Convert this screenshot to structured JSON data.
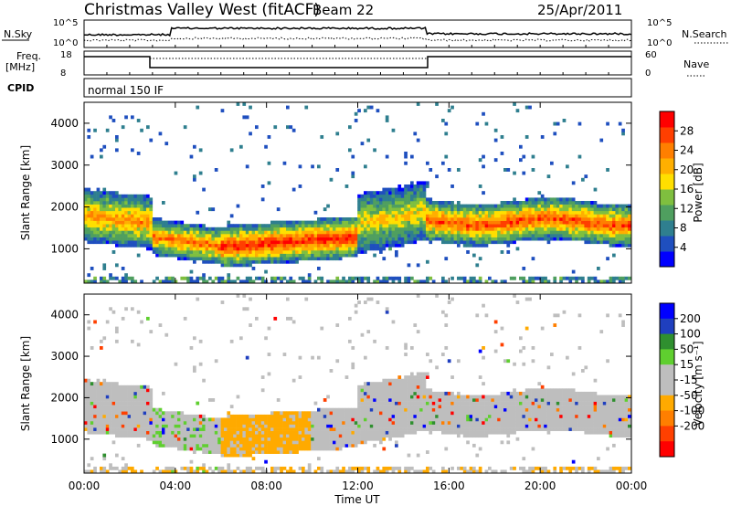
{
  "header": {
    "station": "Christmas Valley West (fitACF)",
    "beam": "Beam 22",
    "date": "25/Apr/2011"
  },
  "aux": {
    "nsky_label": "N.Sky",
    "nsearch_label": "N.Search",
    "noise_ticks": [
      "10^5",
      "10^0"
    ],
    "freq_label_1": "Freq.",
    "freq_label_2": "[MHz]",
    "freq_ticks": [
      "18",
      "8"
    ],
    "nave_label": "Nave",
    "nave_ticks": [
      "60",
      "0"
    ],
    "cpid_label": "CPID",
    "cpid_value": "normal 150 IF"
  },
  "colors": {
    "power_scale": [
      "#0000ff",
      "#1f4fbf",
      "#2f7f8f",
      "#4f9f5f",
      "#7fbf3f",
      "#ffdf00",
      "#ffaf00",
      "#ff7f00",
      "#ff3f00",
      "#ff0000"
    ],
    "velocity_scale": [
      "#0000ff",
      "#1f3fbf",
      "#2f8f2f",
      "#5fcf2f",
      "#bebebe",
      "#bebebe",
      "#ffaa00",
      "#ff7f00",
      "#ff4000",
      "#ff0000"
    ]
  },
  "chart_data": [
    {
      "type": "heatmap",
      "name": "power",
      "xlabel": "Time UT",
      "ylabel": "Slant Range [km]",
      "x_ticks": [
        "00:00",
        "04:00",
        "08:00",
        "12:00",
        "16:00",
        "20:00",
        "00:00"
      ],
      "y_ticks": [
        1000,
        2000,
        3000,
        4000
      ],
      "ylim": [
        180,
        4500
      ],
      "xlim_hours": [
        0,
        24
      ],
      "colorbar": {
        "label": "Power [dB]",
        "ticks": [
          "4",
          "8",
          "12",
          "16",
          "20",
          "24",
          "28"
        ],
        "range": [
          0,
          30
        ]
      },
      "bands": [
        {
          "hours": [
            0,
            3
          ],
          "range_km": [
            1250,
            2400
          ],
          "peak_db": 22
        },
        {
          "hours": [
            3,
            6
          ],
          "range_km": [
            900,
            1700
          ],
          "peak_db": 24
        },
        {
          "hours": [
            6,
            12
          ],
          "range_km": [
            600,
            1500
          ],
          "peak_db": 28
        },
        {
          "hours": [
            12,
            15
          ],
          "range_km": [
            1200,
            2500
          ],
          "peak_db": 18
        },
        {
          "hours": [
            15,
            24
          ],
          "range_km": [
            1300,
            2200
          ],
          "peak_db": 26
        }
      ]
    },
    {
      "type": "heatmap",
      "name": "velocity",
      "xlabel": "Time UT",
      "ylabel": "Slant Range [km]",
      "x_ticks": [
        "00:00",
        "04:00",
        "08:00",
        "12:00",
        "16:00",
        "20:00",
        "00:00"
      ],
      "y_ticks": [
        1000,
        2000,
        3000,
        4000
      ],
      "ylim": [
        180,
        4500
      ],
      "xlim_hours": [
        0,
        24
      ],
      "colorbar": {
        "label": "Velocity [m s⁻¹]",
        "ticks": [
          "200",
          "100",
          "50",
          "15",
          "-15",
          "-50",
          "-100",
          "-200"
        ],
        "range": [
          -250,
          250
        ]
      }
    }
  ]
}
